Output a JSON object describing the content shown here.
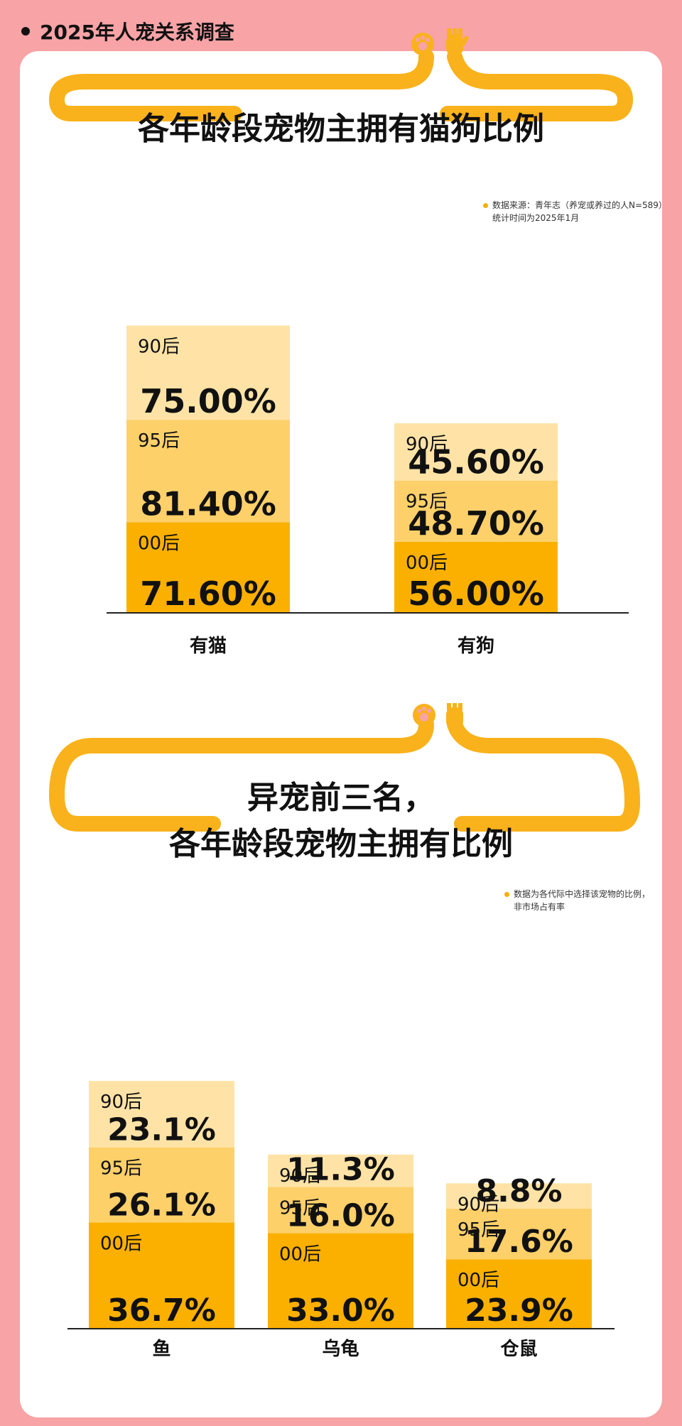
{
  "header": {
    "title": "2025年人宠关系调查"
  },
  "section1": {
    "title": "各年龄段宠物主拥有猫狗比例",
    "note_line1": "数据来源：青年志（养宠或养过的人N=589）",
    "note_line2": "统计时间为2025年1月"
  },
  "section2": {
    "title_line1": "异宠前三名，",
    "title_line2": "各年龄段宠物主拥有比例",
    "note_line1": "数据为各代际中选择该宠物的比例，",
    "note_line2": "非市场占有率"
  },
  "colors": {
    "c90": "#ffe3a6",
    "c95": "#fdd06a",
    "c00": "#fbb000",
    "pink": "#f8a3a6",
    "tube": "#f9b21b"
  },
  "chart_data": [
    {
      "type": "bar",
      "stacked": true,
      "categories": [
        "有猫",
        "有狗"
      ],
      "series": [
        {
          "name": "00后",
          "values": [
            71.6,
            56.0
          ],
          "labels": [
            "71.60%",
            "56.00%"
          ]
        },
        {
          "name": "95后",
          "values": [
            81.4,
            48.7
          ],
          "labels": [
            "81.40%",
            "48.70%"
          ]
        },
        {
          "name": "90后",
          "values": [
            75.0,
            45.6
          ],
          "labels": [
            "75.00%",
            "45.60%"
          ]
        }
      ]
    },
    {
      "type": "bar",
      "stacked": true,
      "categories": [
        "鱼",
        "乌龟",
        "仓鼠"
      ],
      "series": [
        {
          "name": "00后",
          "values": [
            36.7,
            33.0,
            23.9
          ],
          "labels": [
            "36.7%",
            "33.0%",
            "23.9%"
          ]
        },
        {
          "name": "95后",
          "values": [
            26.1,
            16.0,
            17.6
          ],
          "labels": [
            "26.1%",
            "16.0%",
            "17.6%"
          ]
        },
        {
          "name": "90后",
          "values": [
            23.1,
            11.3,
            8.8
          ],
          "labels": [
            "23.1%",
            "11.3%",
            "8.8%"
          ]
        }
      ]
    }
  ]
}
